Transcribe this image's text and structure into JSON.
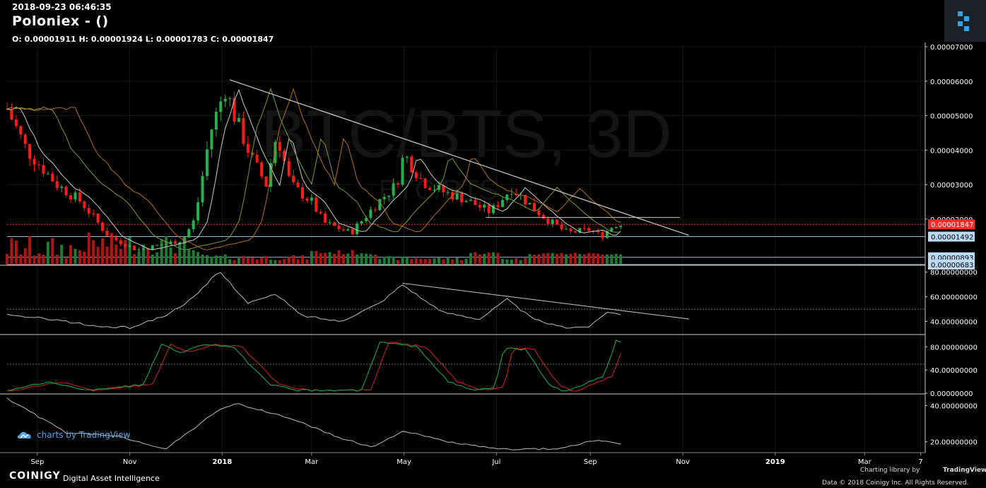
{
  "header": {
    "timestamp": "2018-09-23 06:46:35",
    "title": "Poloniex -  ()",
    "ohlc": "O: 0.00001911 H: 0.00001924 L: 0.00001783 C: 0.00001847"
  },
  "watermark": {
    "large": "BTC/BTS, 3D",
    "small": "BTC/BTS"
  },
  "footer": {
    "charts_by": "charts by TradingView",
    "brand": "COINIGY",
    "tagline": "Digital Asset Intelligence",
    "charting_library": "Charting library by",
    "tradingview": "TradingView",
    "data_notice": "Data © 2018   Coinigy Inc. All Rights Reserved."
  },
  "colors": {
    "up": "#22b14c",
    "down": "#ff1a1a",
    "vol_up": "#1f7a35",
    "vol_down": "#b01515",
    "ema_fast": "#cccccc",
    "ema_mid": "#7c9a3c",
    "ema_slow": "#b06f1e",
    "last_price": "#ff2a2a",
    "level_label": "#bcd9f5",
    "stoch_k": "#1db34a",
    "stoch_d": "#d81e1e",
    "indicator": "#bbbbbb"
  },
  "chart_data": [
    {
      "type": "candlestick",
      "pair": "BTC/BTS",
      "timeframe": "3D",
      "x_tick_labels": [
        "Sep",
        "Nov",
        "2018",
        "Mar",
        "May",
        "Jul",
        "Sep",
        "Nov",
        "2019",
        "Mar",
        "7"
      ],
      "y_axis_labels": [
        "0.00007000",
        "0.00006000",
        "0.00005000",
        "0.00004000",
        "0.00003000",
        "0.00002000"
      ],
      "ylim": [
        6.83e-06,
        7e-05
      ],
      "last_price": "0.00001847",
      "horizontal_levels": [
        "0.00001492",
        "0.00000893",
        "0.00000683"
      ],
      "price_keypoints": [
        {
          "date": "2017-08-12",
          "price": 5.2e-05
        },
        {
          "date": "2017-08-25",
          "price": 4e-05
        },
        {
          "date": "2017-09-14",
          "price": 3e-05
        },
        {
          "date": "2017-09-30",
          "price": 2.5e-05
        },
        {
          "date": "2017-10-18",
          "price": 1.5e-05
        },
        {
          "date": "2017-11-06",
          "price": 1.1e-05
        },
        {
          "date": "2017-11-26",
          "price": 1.3e-05
        },
        {
          "date": "2017-12-06",
          "price": 1.4e-05
        },
        {
          "date": "2017-12-14",
          "price": 2e-05
        },
        {
          "date": "2017-12-24",
          "price": 4.5e-05
        },
        {
          "date": "2018-01-03",
          "price": 5.8e-05
        },
        {
          "date": "2018-01-09",
          "price": 5e-05
        },
        {
          "date": "2018-01-20",
          "price": 3.8e-05
        },
        {
          "date": "2018-01-30",
          "price": 3e-05
        },
        {
          "date": "2018-02-06",
          "price": 4.5e-05
        },
        {
          "date": "2018-02-15",
          "price": 3e-05
        },
        {
          "date": "2018-03-01",
          "price": 2.5e-05
        },
        {
          "date": "2018-03-09",
          "price": 1.9e-05
        },
        {
          "date": "2018-03-27",
          "price": 1.6e-05
        },
        {
          "date": "2018-04-14",
          "price": 2.5e-05
        },
        {
          "date": "2018-04-26",
          "price": 3e-05
        },
        {
          "date": "2018-05-01",
          "price": 3.9e-05
        },
        {
          "date": "2018-05-13",
          "price": 3.1e-05
        },
        {
          "date": "2018-05-26",
          "price": 2.8e-05
        },
        {
          "date": "2018-06-09",
          "price": 2.6e-05
        },
        {
          "date": "2018-06-27",
          "price": 2.2e-05
        },
        {
          "date": "2018-07-11",
          "price": 2.9e-05
        },
        {
          "date": "2018-07-21",
          "price": 2.5e-05
        },
        {
          "date": "2018-08-03",
          "price": 2e-05
        },
        {
          "date": "2018-08-17",
          "price": 1.6e-05
        },
        {
          "date": "2018-09-01",
          "price": 1.7e-05
        },
        {
          "date": "2018-09-08",
          "price": 1.5e-05
        },
        {
          "date": "2018-09-17",
          "price": 1.85e-05
        },
        {
          "date": "2018-09-23",
          "price": 1.847e-05
        }
      ]
    },
    {
      "type": "line",
      "panel": "oscillator",
      "y_axis_labels": [
        "80.00000000",
        "60.00000000",
        "40.00000000"
      ],
      "ylim": [
        30,
        85
      ],
      "series": [
        {
          "values_by_date": [
            {
              "date": "2017-08-12",
              "value": 45
            },
            {
              "date": "2017-09-10",
              "value": 42
            },
            {
              "date": "2017-10-10",
              "value": 36
            },
            {
              "date": "2017-11-01",
              "value": 35
            },
            {
              "date": "2017-11-25",
              "value": 45
            },
            {
              "date": "2017-12-14",
              "value": 60
            },
            {
              "date": "2017-12-30",
              "value": 81
            },
            {
              "date": "2018-01-18",
              "value": 55
            },
            {
              "date": "2018-02-06",
              "value": 62
            },
            {
              "date": "2018-02-22",
              "value": 45
            },
            {
              "date": "2018-03-20",
              "value": 40
            },
            {
              "date": "2018-04-15",
              "value": 55
            },
            {
              "date": "2018-04-30",
              "value": 70
            },
            {
              "date": "2018-05-25",
              "value": 48
            },
            {
              "date": "2018-06-20",
              "value": 42
            },
            {
              "date": "2018-07-08",
              "value": 58
            },
            {
              "date": "2018-07-25",
              "value": 42
            },
            {
              "date": "2018-08-14",
              "value": 35
            },
            {
              "date": "2018-09-01",
              "value": 36
            },
            {
              "date": "2018-09-12",
              "value": 48
            },
            {
              "date": "2018-09-23",
              "value": 45
            }
          ]
        }
      ]
    },
    {
      "type": "line",
      "panel": "stochastic",
      "y_axis_labels": [
        "80.00000000",
        "40.00000000",
        "0.00000000"
      ],
      "ylim": [
        0,
        100
      ],
      "series": [
        {
          "values_by_date": [
            {
              "date": "2017-08-12",
              "value": 5
            },
            {
              "date": "2017-09-10",
              "value": 20
            },
            {
              "date": "2017-10-01",
              "value": 5
            },
            {
              "date": "2017-11-10",
              "value": 15
            },
            {
              "date": "2017-11-22",
              "value": 85
            },
            {
              "date": "2017-12-05",
              "value": 70
            },
            {
              "date": "2017-12-20",
              "value": 85
            },
            {
              "date": "2018-01-08",
              "value": 80
            },
            {
              "date": "2018-02-01",
              "value": 15
            },
            {
              "date": "2018-02-20",
              "value": 5
            },
            {
              "date": "2018-04-03",
              "value": 5
            },
            {
              "date": "2018-04-15",
              "value": 88
            },
            {
              "date": "2018-05-10",
              "value": 80
            },
            {
              "date": "2018-05-30",
              "value": 20
            },
            {
              "date": "2018-06-15",
              "value": 5
            },
            {
              "date": "2018-06-30",
              "value": 10
            },
            {
              "date": "2018-07-06",
              "value": 78
            },
            {
              "date": "2018-07-20",
              "value": 75
            },
            {
              "date": "2018-08-05",
              "value": 15
            },
            {
              "date": "2018-08-15",
              "value": 2
            },
            {
              "date": "2018-09-10",
              "value": 30
            },
            {
              "date": "2018-09-18",
              "value": 90
            },
            {
              "date": "2018-09-23",
              "value": 85
            }
          ]
        }
      ]
    },
    {
      "type": "line",
      "panel": "lower",
      "y_axis_labels": [
        "40.00000000",
        "20.00000000"
      ],
      "ylim": [
        14,
        46
      ],
      "series": [
        {
          "values_by_date": [
            {
              "date": "2017-08-12",
              "value": 44
            },
            {
              "date": "2017-09-20",
              "value": 25
            },
            {
              "date": "2017-10-25",
              "value": 23
            },
            {
              "date": "2017-11-25",
              "value": 16
            },
            {
              "date": "2017-12-30",
              "value": 38
            },
            {
              "date": "2018-01-10",
              "value": 41
            },
            {
              "date": "2018-02-15",
              "value": 33
            },
            {
              "date": "2018-03-20",
              "value": 22
            },
            {
              "date": "2018-04-10",
              "value": 17
            },
            {
              "date": "2018-04-30",
              "value": 26
            },
            {
              "date": "2018-05-30",
              "value": 20
            },
            {
              "date": "2018-07-01",
              "value": 16
            },
            {
              "date": "2018-08-10",
              "value": 16
            },
            {
              "date": "2018-09-05",
              "value": 21
            },
            {
              "date": "2018-09-23",
              "value": 18
            }
          ]
        }
      ]
    }
  ]
}
